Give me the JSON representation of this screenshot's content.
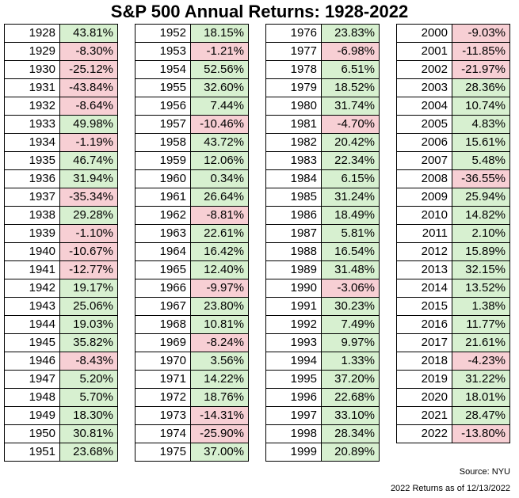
{
  "title": "S&P 500 Annual Returns: 1928-2022",
  "source": "Source: NYU",
  "note": "2022 Returns as of 12/13/2022",
  "colors": {
    "positive": "#d7f0d0",
    "negative": "#f7cfd4"
  },
  "columns": [
    [
      {
        "year": "1928",
        "ret": "43.81%"
      },
      {
        "year": "1929",
        "ret": "-8.30%"
      },
      {
        "year": "1930",
        "ret": "-25.12%"
      },
      {
        "year": "1931",
        "ret": "-43.84%"
      },
      {
        "year": "1932",
        "ret": "-8.64%"
      },
      {
        "year": "1933",
        "ret": "49.98%"
      },
      {
        "year": "1934",
        "ret": "-1.19%"
      },
      {
        "year": "1935",
        "ret": "46.74%"
      },
      {
        "year": "1936",
        "ret": "31.94%"
      },
      {
        "year": "1937",
        "ret": "-35.34%"
      },
      {
        "year": "1938",
        "ret": "29.28%"
      },
      {
        "year": "1939",
        "ret": "-1.10%"
      },
      {
        "year": "1940",
        "ret": "-10.67%"
      },
      {
        "year": "1941",
        "ret": "-12.77%"
      },
      {
        "year": "1942",
        "ret": "19.17%"
      },
      {
        "year": "1943",
        "ret": "25.06%"
      },
      {
        "year": "1944",
        "ret": "19.03%"
      },
      {
        "year": "1945",
        "ret": "35.82%"
      },
      {
        "year": "1946",
        "ret": "-8.43%"
      },
      {
        "year": "1947",
        "ret": "5.20%"
      },
      {
        "year": "1948",
        "ret": "5.70%"
      },
      {
        "year": "1949",
        "ret": "18.30%"
      },
      {
        "year": "1950",
        "ret": "30.81%"
      },
      {
        "year": "1951",
        "ret": "23.68%"
      }
    ],
    [
      {
        "year": "1952",
        "ret": "18.15%"
      },
      {
        "year": "1953",
        "ret": "-1.21%"
      },
      {
        "year": "1954",
        "ret": "52.56%"
      },
      {
        "year": "1955",
        "ret": "32.60%"
      },
      {
        "year": "1956",
        "ret": "7.44%"
      },
      {
        "year": "1957",
        "ret": "-10.46%"
      },
      {
        "year": "1958",
        "ret": "43.72%"
      },
      {
        "year": "1959",
        "ret": "12.06%"
      },
      {
        "year": "1960",
        "ret": "0.34%"
      },
      {
        "year": "1961",
        "ret": "26.64%"
      },
      {
        "year": "1962",
        "ret": "-8.81%"
      },
      {
        "year": "1963",
        "ret": "22.61%"
      },
      {
        "year": "1964",
        "ret": "16.42%"
      },
      {
        "year": "1965",
        "ret": "12.40%"
      },
      {
        "year": "1966",
        "ret": "-9.97%"
      },
      {
        "year": "1967",
        "ret": "23.80%"
      },
      {
        "year": "1968",
        "ret": "10.81%"
      },
      {
        "year": "1969",
        "ret": "-8.24%"
      },
      {
        "year": "1970",
        "ret": "3.56%"
      },
      {
        "year": "1971",
        "ret": "14.22%"
      },
      {
        "year": "1972",
        "ret": "18.76%"
      },
      {
        "year": "1973",
        "ret": "-14.31%"
      },
      {
        "year": "1974",
        "ret": "-25.90%"
      },
      {
        "year": "1975",
        "ret": "37.00%"
      }
    ],
    [
      {
        "year": "1976",
        "ret": "23.83%"
      },
      {
        "year": "1977",
        "ret": "-6.98%"
      },
      {
        "year": "1978",
        "ret": "6.51%"
      },
      {
        "year": "1979",
        "ret": "18.52%"
      },
      {
        "year": "1980",
        "ret": "31.74%"
      },
      {
        "year": "1981",
        "ret": "-4.70%"
      },
      {
        "year": "1982",
        "ret": "20.42%"
      },
      {
        "year": "1983",
        "ret": "22.34%"
      },
      {
        "year": "1984",
        "ret": "6.15%"
      },
      {
        "year": "1985",
        "ret": "31.24%"
      },
      {
        "year": "1986",
        "ret": "18.49%"
      },
      {
        "year": "1987",
        "ret": "5.81%"
      },
      {
        "year": "1988",
        "ret": "16.54%"
      },
      {
        "year": "1989",
        "ret": "31.48%"
      },
      {
        "year": "1990",
        "ret": "-3.06%"
      },
      {
        "year": "1991",
        "ret": "30.23%"
      },
      {
        "year": "1992",
        "ret": "7.49%"
      },
      {
        "year": "1993",
        "ret": "9.97%"
      },
      {
        "year": "1994",
        "ret": "1.33%"
      },
      {
        "year": "1995",
        "ret": "37.20%"
      },
      {
        "year": "1996",
        "ret": "22.68%"
      },
      {
        "year": "1997",
        "ret": "33.10%"
      },
      {
        "year": "1998",
        "ret": "28.34%"
      },
      {
        "year": "1999",
        "ret": "20.89%"
      }
    ],
    [
      {
        "year": "2000",
        "ret": "-9.03%"
      },
      {
        "year": "2001",
        "ret": "-11.85%"
      },
      {
        "year": "2002",
        "ret": "-21.97%"
      },
      {
        "year": "2003",
        "ret": "28.36%"
      },
      {
        "year": "2004",
        "ret": "10.74%"
      },
      {
        "year": "2005",
        "ret": "4.83%"
      },
      {
        "year": "2006",
        "ret": "15.61%"
      },
      {
        "year": "2007",
        "ret": "5.48%"
      },
      {
        "year": "2008",
        "ret": "-36.55%"
      },
      {
        "year": "2009",
        "ret": "25.94%"
      },
      {
        "year": "2010",
        "ret": "14.82%"
      },
      {
        "year": "2011",
        "ret": "2.10%"
      },
      {
        "year": "2012",
        "ret": "15.89%"
      },
      {
        "year": "2013",
        "ret": "32.15%"
      },
      {
        "year": "2014",
        "ret": "13.52%"
      },
      {
        "year": "2015",
        "ret": "1.38%"
      },
      {
        "year": "2016",
        "ret": "11.77%"
      },
      {
        "year": "2017",
        "ret": "21.61%"
      },
      {
        "year": "2018",
        "ret": "-4.23%"
      },
      {
        "year": "2019",
        "ret": "31.22%"
      },
      {
        "year": "2020",
        "ret": "18.01%"
      },
      {
        "year": "2021",
        "ret": "28.47%"
      },
      {
        "year": "2022",
        "ret": "-13.80%"
      }
    ]
  ]
}
